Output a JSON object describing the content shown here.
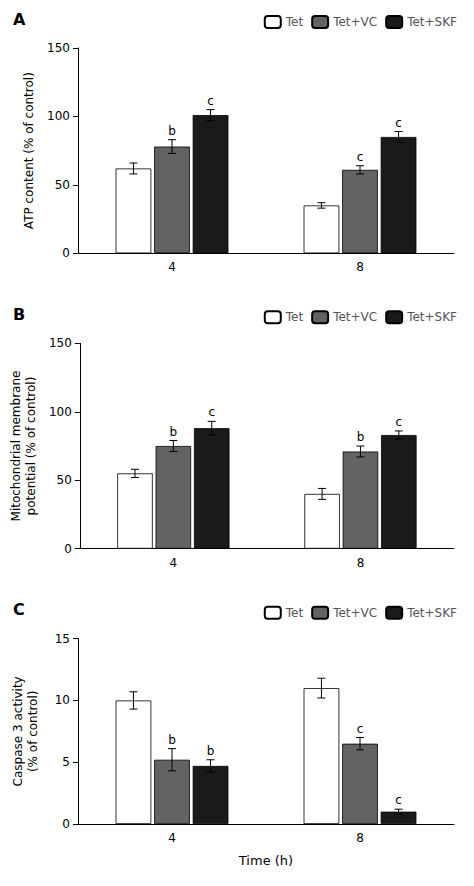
{
  "chart_data": [
    {
      "type": "bar",
      "title": "A",
      "ylabel": "ATP content (% of control)",
      "categories": [
        "4",
        "8"
      ],
      "series": [
        {
          "name": "Tet",
          "color": "#ffffff",
          "values": [
            62,
            35
          ],
          "errors": [
            4,
            2
          ]
        },
        {
          "name": "Tet+VC",
          "color": "#636363",
          "values": [
            78,
            61
          ],
          "errors": [
            5,
            3
          ]
        },
        {
          "name": "Tet+SKF",
          "color": "#1a1a1a",
          "values": [
            101,
            85
          ],
          "errors": [
            4,
            4
          ]
        }
      ],
      "annotations": [
        {
          "category": "4",
          "series": "Tet+VC",
          "text": "b"
        },
        {
          "category": "4",
          "series": "Tet+SKF",
          "text": "c"
        },
        {
          "category": "8",
          "series": "Tet+VC",
          "text": "c"
        },
        {
          "category": "8",
          "series": "Tet+SKF",
          "text": "c"
        }
      ],
      "ylim": [
        0,
        150
      ],
      "yticks": [
        0,
        50,
        100,
        150
      ],
      "grid": false,
      "legend": "upper right"
    },
    {
      "type": "bar",
      "title": "B",
      "ylabel": "Mitochondrial membrane\npotential (% of control)",
      "categories": [
        "4",
        "8"
      ],
      "series": [
        {
          "name": "Tet",
          "color": "#ffffff",
          "values": [
            55,
            40
          ],
          "errors": [
            3,
            4
          ]
        },
        {
          "name": "Tet+VC",
          "color": "#636363",
          "values": [
            75,
            71
          ],
          "errors": [
            4,
            4
          ]
        },
        {
          "name": "Tet+SKF",
          "color": "#1a1a1a",
          "values": [
            88,
            83
          ],
          "errors": [
            5,
            3
          ]
        }
      ],
      "annotations": [
        {
          "category": "4",
          "series": "Tet+VC",
          "text": "b"
        },
        {
          "category": "4",
          "series": "Tet+SKF",
          "text": "c"
        },
        {
          "category": "8",
          "series": "Tet+VC",
          "text": "b"
        },
        {
          "category": "8",
          "series": "Tet+SKF",
          "text": "c"
        }
      ],
      "ylim": [
        0,
        150
      ],
      "yticks": [
        0,
        50,
        100,
        150
      ],
      "grid": false,
      "legend": "upper right"
    },
    {
      "type": "bar",
      "title": "C",
      "ylabel": "Caspase 3 activity\n(% of control)",
      "xlabel": "Time (h)",
      "categories": [
        "4",
        "8"
      ],
      "series": [
        {
          "name": "Tet",
          "color": "#ffffff",
          "values": [
            10.0,
            11.0
          ],
          "errors": [
            0.7,
            0.8
          ]
        },
        {
          "name": "Tet+VC",
          "color": "#636363",
          "values": [
            5.2,
            6.5
          ],
          "errors": [
            0.9,
            0.5
          ]
        },
        {
          "name": "Tet+SKF",
          "color": "#1a1a1a",
          "values": [
            4.7,
            1.0
          ],
          "errors": [
            0.5,
            0.2
          ]
        }
      ],
      "annotations": [
        {
          "category": "4",
          "series": "Tet+VC",
          "text": "b"
        },
        {
          "category": "4",
          "series": "Tet+SKF",
          "text": "b"
        },
        {
          "category": "8",
          "series": "Tet+VC",
          "text": "c"
        },
        {
          "category": "8",
          "series": "Tet+SKF",
          "text": "c"
        }
      ],
      "ylim": [
        0,
        15
      ],
      "yticks": [
        0,
        5,
        10,
        15
      ],
      "grid": false,
      "legend": "upper right"
    }
  ]
}
